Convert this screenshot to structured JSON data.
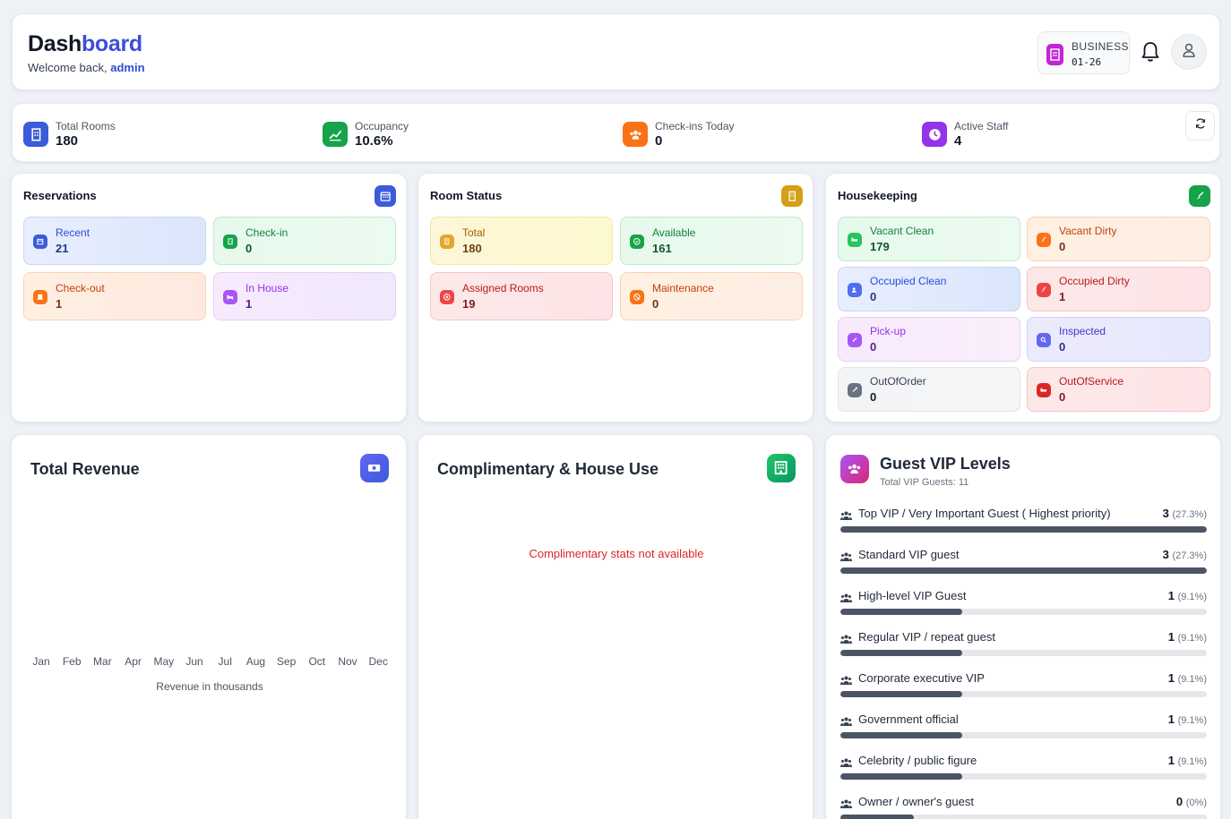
{
  "header": {
    "title_a": "Dash",
    "title_b": "board",
    "welcome": "Welcome back,",
    "user": "admin",
    "badge_label": "BUSINESS",
    "badge_date": "01-26",
    "icons": [
      "building-icon",
      "bell-icon",
      "user-icon"
    ]
  },
  "stats": {
    "items": [
      {
        "label": "Total Rooms",
        "value": "180",
        "color": "#3b5bdb"
      },
      {
        "label": "Occupancy",
        "value": "10.6%",
        "color": "#16a34a"
      },
      {
        "label": "Check-ins Today",
        "value": "0",
        "color": "#f97316"
      },
      {
        "label": "Active Staff",
        "value": "4",
        "color": "#9333ea"
      }
    ]
  },
  "reservations": {
    "title": "Reservations",
    "tiles": [
      {
        "label": "Recent",
        "value": "21"
      },
      {
        "label": "Check-in",
        "value": "0"
      },
      {
        "label": "Check-out",
        "value": "1"
      },
      {
        "label": "In House",
        "value": "1"
      }
    ]
  },
  "room_status": {
    "title": "Room Status",
    "tiles": [
      {
        "label": "Total",
        "value": "180"
      },
      {
        "label": "Available",
        "value": "161"
      },
      {
        "label": "Assigned Rooms",
        "value": "19"
      },
      {
        "label": "Maintenance",
        "value": "0"
      }
    ]
  },
  "housekeeping": {
    "title": "Housekeeping",
    "tiles": [
      {
        "label": "Vacant Clean",
        "value": "179"
      },
      {
        "label": "Vacant Dirty",
        "value": "0"
      },
      {
        "label": "Occupied Clean",
        "value": "0"
      },
      {
        "label": "Occupied Dirty",
        "value": "1"
      },
      {
        "label": "Pick-up",
        "value": "0"
      },
      {
        "label": "Inspected",
        "value": "0"
      },
      {
        "label": "OutOfOrder",
        "value": "0"
      },
      {
        "label": "OutOfService",
        "value": "0"
      }
    ]
  },
  "revenue": {
    "title": "Total Revenue",
    "months": [
      "Jan",
      "Feb",
      "Mar",
      "Apr",
      "May",
      "Jun",
      "Jul",
      "Aug",
      "Sep",
      "Oct",
      "Nov",
      "Dec"
    ],
    "caption": "Revenue in thousands"
  },
  "complimentary": {
    "title": "Complimentary & House Use",
    "message": "Complimentary stats not available"
  },
  "vip": {
    "title": "Guest VIP Levels",
    "subtitle": "Total VIP Guests: 11",
    "levels": [
      {
        "name": "Top VIP / Very Important Guest ( Highest priority)",
        "count": "3",
        "pct": "(27.3%)",
        "fraction": 1.0
      },
      {
        "name": "Standard VIP guest",
        "count": "3",
        "pct": "(27.3%)",
        "fraction": 1.0
      },
      {
        "name": "High-level VIP Guest",
        "count": "1",
        "pct": "(9.1%)",
        "fraction": 0.333
      },
      {
        "name": "Regular VIP / repeat guest",
        "count": "1",
        "pct": "(9.1%)",
        "fraction": 0.333
      },
      {
        "name": "Corporate executive VIP",
        "count": "1",
        "pct": "(9.1%)",
        "fraction": 0.333
      },
      {
        "name": "Government official",
        "count": "1",
        "pct": "(9.1%)",
        "fraction": 0.333
      },
      {
        "name": "Celebrity / public figure",
        "count": "1",
        "pct": "(9.1%)",
        "fraction": 0.333
      },
      {
        "name": "Owner / owner's guest",
        "count": "0",
        "pct": "(0%)",
        "fraction": 0.2
      }
    ]
  }
}
